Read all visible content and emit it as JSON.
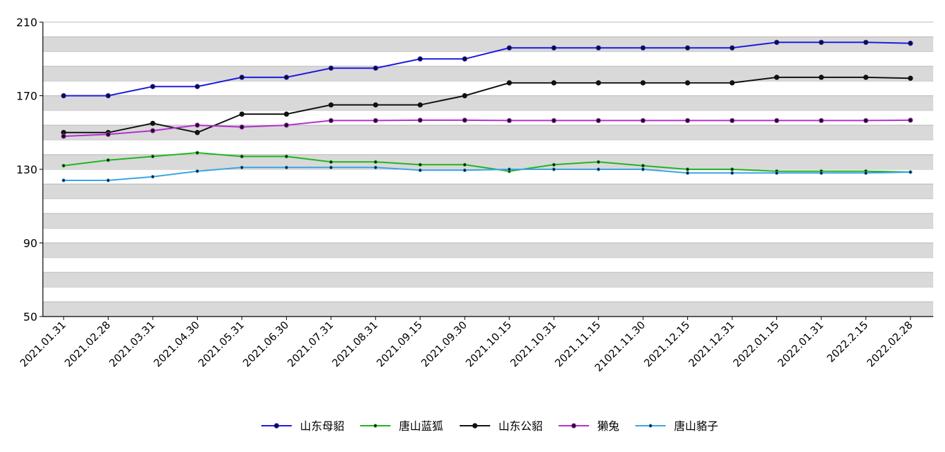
{
  "chart_data": {
    "type": "line",
    "title": "",
    "xlabel": "",
    "ylabel": "",
    "ylim": [
      50,
      210
    ],
    "yticks": [
      50,
      90,
      130,
      170,
      210
    ],
    "grid": "alternating horizontal bands",
    "legend_position": "bottom-center",
    "categories": [
      "2021.01.31",
      "2021.02.28",
      "2021.03.31",
      "2021.04.30",
      "2021.05.31",
      "2021.06.30",
      "2021.07.31",
      "2021.08.31",
      "2021.09.15",
      "2021.09.30",
      "2021.10.15",
      "2021.10.31",
      "2021.11.15",
      "21021.11.30",
      "2021.12.15",
      "2021.12.31",
      "2022.01.15",
      "2022.01.31",
      "2022.2.15",
      "2022.02.28"
    ],
    "series": [
      {
        "name": "山东母貂",
        "color": "#1a1adf",
        "marker": "large",
        "values": [
          170,
          170,
          175,
          175,
          180,
          180,
          185,
          185,
          190,
          190,
          196,
          196,
          196,
          196,
          196,
          196,
          199,
          199,
          199,
          198.5
        ]
      },
      {
        "name": "唐山蓝狐",
        "color": "#1fb51f",
        "marker": "small",
        "values": [
          132,
          135,
          137,
          139,
          137,
          137,
          134,
          134,
          132.5,
          132.5,
          129,
          132.5,
          134,
          132,
          130,
          130,
          129,
          129,
          129,
          128.5
        ]
      },
      {
        "name": "山东公貂",
        "color": "#111111",
        "marker": "large",
        "values": [
          150,
          150,
          155,
          150,
          160,
          160,
          165,
          165,
          165,
          170,
          177,
          177,
          177,
          177,
          177,
          177,
          180,
          180,
          180,
          179.5
        ]
      },
      {
        "name": "獭兔",
        "color": "#b52ecf",
        "marker": "large",
        "values": [
          148,
          149,
          151,
          154,
          153,
          154,
          156.5,
          156.5,
          156.7,
          156.7,
          156.5,
          156.5,
          156.5,
          156.5,
          156.5,
          156.5,
          156.5,
          156.5,
          156.5,
          156.7
        ]
      },
      {
        "name": "唐山貉子",
        "color": "#3aa3e6",
        "marker": "small",
        "values": [
          124,
          124,
          126,
          129,
          131,
          131,
          131,
          131,
          129.5,
          129.5,
          130,
          130,
          130,
          130,
          128,
          128,
          128,
          128,
          128,
          128.5
        ]
      }
    ]
  }
}
